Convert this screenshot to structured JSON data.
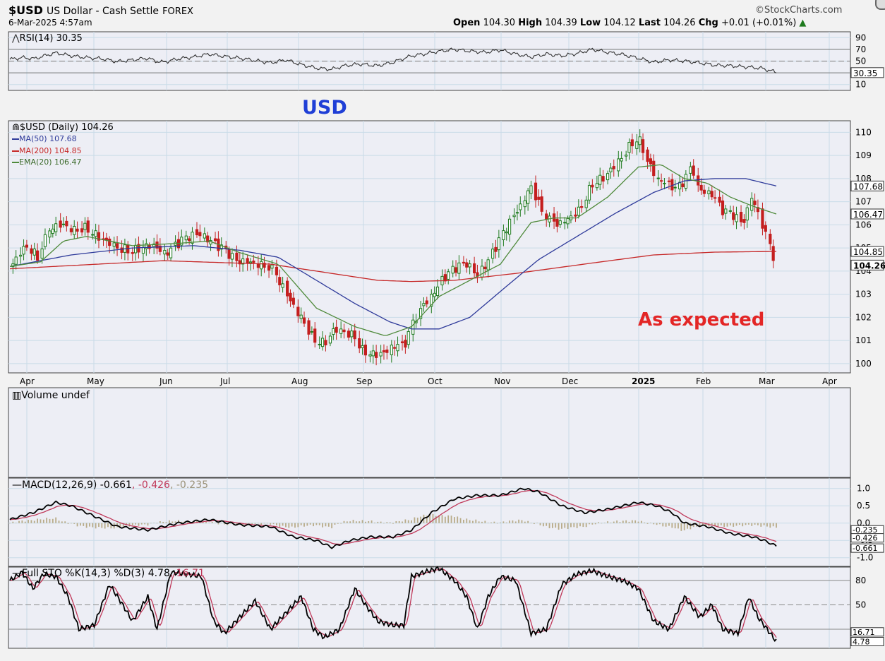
{
  "header": {
    "symbol": "$USD",
    "name": "US Dollar - Cash Settle",
    "exchange": "FOREX",
    "date": "6-Mar-2025 4:57am",
    "brand": "©StockCharts.com",
    "open_label": "Open",
    "open": "104.30",
    "high_label": "High",
    "high": "104.39",
    "low_label": "Low",
    "low": "104.12",
    "last_label": "Last",
    "last": "104.26",
    "chg_label": "Chg",
    "chg": "+0.01 (+0.01%)"
  },
  "annotations": {
    "usd": "USD",
    "expected": "As expected"
  },
  "colors": {
    "panel_bg": "#edeef5",
    "grid": "#c9dbe8",
    "up": "#1e7a1e",
    "down": "#c41e1e",
    "ma50": "#2e3a9a",
    "ma200": "#c62828",
    "ema20": "#4f8a3b",
    "macd_signal": "#c0395a",
    "hist": "#b8ab88",
    "usd_text": "#1f3fd6",
    "expected_text": "#e32626"
  },
  "chart_data": [
    {
      "type": "line",
      "title": "RSI(14) 30.35",
      "series": [
        {
          "name": "RSI(14)",
          "last": 30.35
        }
      ],
      "ylim": [
        0,
        100
      ],
      "yticks": [
        "90",
        "70",
        "50",
        "30.35",
        "10"
      ],
      "levels": [
        70,
        50,
        30
      ],
      "keypoints_rsi": [
        [
          0,
          53
        ],
        [
          8,
          56
        ],
        [
          16,
          54
        ],
        [
          24,
          60
        ],
        [
          30,
          64
        ],
        [
          40,
          59
        ],
        [
          50,
          56
        ],
        [
          60,
          54
        ],
        [
          70,
          49
        ],
        [
          80,
          52
        ],
        [
          90,
          55
        ],
        [
          95,
          50
        ],
        [
          100,
          48
        ],
        [
          110,
          54
        ],
        [
          120,
          57
        ],
        [
          130,
          62
        ],
        [
          140,
          58
        ],
        [
          150,
          55
        ],
        [
          160,
          51
        ],
        [
          170,
          47
        ],
        [
          180,
          52
        ],
        [
          190,
          44
        ],
        [
          200,
          38
        ],
        [
          210,
          36
        ],
        [
          218,
          42
        ],
        [
          228,
          45
        ],
        [
          240,
          42
        ],
        [
          250,
          48
        ],
        [
          262,
          59
        ],
        [
          270,
          62
        ],
        [
          278,
          66
        ],
        [
          290,
          70
        ],
        [
          300,
          67
        ],
        [
          310,
          65
        ],
        [
          320,
          69
        ],
        [
          330,
          62
        ],
        [
          340,
          57
        ],
        [
          350,
          62
        ],
        [
          360,
          59
        ],
        [
          370,
          63
        ],
        [
          380,
          70
        ],
        [
          390,
          65
        ],
        [
          400,
          61
        ],
        [
          410,
          55
        ],
        [
          420,
          48
        ],
        [
          430,
          52
        ],
        [
          440,
          50
        ],
        [
          450,
          47
        ],
        [
          460,
          43
        ],
        [
          470,
          42
        ],
        [
          480,
          40
        ],
        [
          490,
          38
        ],
        [
          500,
          31
        ]
      ]
    },
    {
      "type": "line",
      "title": "$USD (Daily) 104.26",
      "legend": [
        {
          "label": "MA(50) 107.68",
          "color": "#2e3a9a"
        },
        {
          "label": "MA(200) 104.85",
          "color": "#c62828"
        },
        {
          "label": "EMA(20) 106.47",
          "color": "#4f8a3b"
        }
      ],
      "x_ticks": [
        "Apr",
        "May",
        "Jun",
        "Jul",
        "Aug",
        "Sep",
        "Oct",
        "Nov",
        "Dec",
        "2025",
        "Feb",
        "Mar",
        "Apr"
      ],
      "y_ticks": [
        "110",
        "109",
        "108",
        "107",
        "106",
        "105",
        "104",
        "103",
        "102",
        "101",
        "100"
      ],
      "ylim": [
        99.6,
        110.5
      ],
      "axis_badges": [
        {
          "label": "107.68",
          "value": 107.68
        },
        {
          "label": "106.47",
          "value": 106.47
        },
        {
          "label": "104.85",
          "value": 104.85
        },
        {
          "label": "104.26",
          "value": 104.26,
          "bold": true
        }
      ],
      "close_keypoints": [
        [
          0,
          104.2
        ],
        [
          5,
          104.6
        ],
        [
          10,
          105.1
        ],
        [
          15,
          104.9
        ],
        [
          18,
          104.6
        ],
        [
          22,
          105.3
        ],
        [
          28,
          105.9
        ],
        [
          35,
          106.0
        ],
        [
          42,
          105.8
        ],
        [
          50,
          105.9
        ],
        [
          58,
          105.5
        ],
        [
          65,
          105.2
        ],
        [
          72,
          105.0
        ],
        [
          80,
          104.9
        ],
        [
          88,
          105.1
        ],
        [
          95,
          105.1
        ],
        [
          100,
          104.7
        ],
        [
          105,
          104.9
        ],
        [
          112,
          105.3
        ],
        [
          118,
          105.5
        ],
        [
          125,
          105.6
        ],
        [
          130,
          105.3
        ],
        [
          140,
          104.9
        ],
        [
          148,
          104.4
        ],
        [
          155,
          104.4
        ],
        [
          163,
          104.3
        ],
        [
          170,
          104.2
        ],
        [
          178,
          103.3
        ],
        [
          185,
          102.5
        ],
        [
          192,
          101.8
        ],
        [
          198,
          101.1
        ],
        [
          205,
          100.9
        ],
        [
          212,
          101.5
        ],
        [
          218,
          101.4
        ],
        [
          225,
          101.2
        ],
        [
          230,
          100.6
        ],
        [
          238,
          100.4
        ],
        [
          245,
          100.5
        ],
        [
          252,
          100.8
        ],
        [
          257,
          100.7
        ],
        [
          262,
          101.6
        ],
        [
          268,
          102.4
        ],
        [
          275,
          102.9
        ],
        [
          282,
          103.6
        ],
        [
          290,
          104.1
        ],
        [
          298,
          104.3
        ],
        [
          305,
          103.8
        ],
        [
          312,
          104.4
        ],
        [
          320,
          105.4
        ],
        [
          328,
          106.3
        ],
        [
          335,
          107.0
        ],
        [
          340,
          107.7
        ],
        [
          346,
          106.8
        ],
        [
          352,
          106.2
        ],
        [
          358,
          106.0
        ],
        [
          365,
          106.3
        ],
        [
          372,
          106.7
        ],
        [
          380,
          107.8
        ],
        [
          388,
          108.1
        ],
        [
          395,
          108.6
        ],
        [
          400,
          109.0
        ],
        [
          405,
          109.5
        ],
        [
          410,
          109.8
        ],
        [
          416,
          108.8
        ],
        [
          422,
          108.0
        ],
        [
          428,
          107.8
        ],
        [
          435,
          107.5
        ],
        [
          440,
          107.9
        ],
        [
          445,
          108.5
        ],
        [
          450,
          107.5
        ],
        [
          458,
          107.3
        ],
        [
          465,
          106.6
        ],
        [
          472,
          106.4
        ],
        [
          478,
          106.0
        ],
        [
          484,
          107.2
        ],
        [
          490,
          106.2
        ],
        [
          495,
          105.2
        ],
        [
          500,
          104.26
        ]
      ],
      "ma50_keypoints": [
        [
          0,
          104.2
        ],
        [
          40,
          104.7
        ],
        [
          80,
          105.0
        ],
        [
          120,
          105.1
        ],
        [
          150,
          104.9
        ],
        [
          175,
          104.6
        ],
        [
          200,
          103.6
        ],
        [
          225,
          102.6
        ],
        [
          248,
          101.8
        ],
        [
          262,
          101.5
        ],
        [
          280,
          101.5
        ],
        [
          300,
          102.0
        ],
        [
          325,
          103.4
        ],
        [
          345,
          104.5
        ],
        [
          370,
          105.5
        ],
        [
          395,
          106.5
        ],
        [
          420,
          107.4
        ],
        [
          440,
          107.9
        ],
        [
          460,
          108.0
        ],
        [
          480,
          108.0
        ],
        [
          500,
          107.68
        ]
      ],
      "ma200_keypoints": [
        [
          0,
          104.1
        ],
        [
          100,
          104.45
        ],
        [
          170,
          104.3
        ],
        [
          200,
          104.0
        ],
        [
          240,
          103.6
        ],
        [
          262,
          103.55
        ],
        [
          290,
          103.6
        ],
        [
          330,
          103.9
        ],
        [
          380,
          104.35
        ],
        [
          420,
          104.7
        ],
        [
          460,
          104.82
        ],
        [
          500,
          104.85
        ]
      ],
      "ema20_keypoints": [
        [
          0,
          104.2
        ],
        [
          20,
          104.4
        ],
        [
          35,
          105.3
        ],
        [
          50,
          105.5
        ],
        [
          80,
          105.1
        ],
        [
          110,
          105.2
        ],
        [
          130,
          105.3
        ],
        [
          150,
          104.8
        ],
        [
          175,
          104.3
        ],
        [
          200,
          102.4
        ],
        [
          225,
          101.6
        ],
        [
          245,
          101.2
        ],
        [
          262,
          101.6
        ],
        [
          280,
          102.9
        ],
        [
          300,
          103.6
        ],
        [
          320,
          104.3
        ],
        [
          340,
          106.1
        ],
        [
          355,
          106.3
        ],
        [
          370,
          106.3
        ],
        [
          390,
          107.2
        ],
        [
          410,
          108.5
        ],
        [
          425,
          108.6
        ],
        [
          440,
          108.0
        ],
        [
          455,
          107.8
        ],
        [
          470,
          107.2
        ],
        [
          485,
          106.8
        ],
        [
          500,
          106.47
        ]
      ],
      "annotation_labels": [
        "USD",
        "As expected"
      ]
    },
    {
      "type": "bar",
      "title": "Volume undef",
      "values": []
    },
    {
      "type": "line",
      "title": "MACD(12,26,9)",
      "title_values": [
        "-0.661",
        "-0.426",
        "-0.235"
      ],
      "series": [
        {
          "name": "MACD",
          "last": -0.661
        },
        {
          "name": "Signal",
          "last": -0.426
        },
        {
          "name": "Histogram",
          "last": -0.235
        }
      ],
      "ylim": [
        -1.25,
        1.3
      ],
      "y_ticks": [
        "1.0",
        "0.5",
        "0.0",
        "-0.5",
        "-1.0"
      ],
      "axis_badges": [
        "-0.235",
        "-0.426",
        "-0.661"
      ],
      "macd_keypoints": [
        [
          0,
          0.1
        ],
        [
          15,
          0.3
        ],
        [
          30,
          0.6
        ],
        [
          40,
          0.5
        ],
        [
          55,
          0.2
        ],
        [
          70,
          -0.1
        ],
        [
          90,
          -0.2
        ],
        [
          110,
          0.0
        ],
        [
          130,
          0.1
        ],
        [
          150,
          -0.05
        ],
        [
          170,
          -0.1
        ],
        [
          185,
          -0.4
        ],
        [
          200,
          -0.5
        ],
        [
          210,
          -0.7
        ],
        [
          222,
          -0.5
        ],
        [
          235,
          -0.4
        ],
        [
          250,
          -0.4
        ],
        [
          262,
          -0.2
        ],
        [
          275,
          0.3
        ],
        [
          290,
          0.7
        ],
        [
          305,
          0.8
        ],
        [
          320,
          0.8
        ],
        [
          335,
          1.0
        ],
        [
          345,
          0.9
        ],
        [
          360,
          0.5
        ],
        [
          375,
          0.3
        ],
        [
          390,
          0.4
        ],
        [
          410,
          0.6
        ],
        [
          422,
          0.5
        ],
        [
          432,
          0.3
        ],
        [
          440,
          0.0
        ],
        [
          455,
          -0.1
        ],
        [
          470,
          -0.3
        ],
        [
          485,
          -0.4
        ],
        [
          492,
          -0.5
        ],
        [
          500,
          -0.661
        ]
      ]
    },
    {
      "type": "line",
      "title": "Full STO %K(14,3) %D(3)",
      "title_values": [
        "4.78",
        "16.71"
      ],
      "series": [
        {
          "name": "%K",
          "last": 4.78
        },
        {
          "name": "%D",
          "last": 16.71
        }
      ],
      "ylim": [
        0,
        100
      ],
      "y_ticks": [
        "80",
        "50",
        "16.71",
        "4.78"
      ],
      "levels": [
        80,
        50,
        20
      ],
      "stoch_keypoints": [
        [
          0,
          80
        ],
        [
          8,
          90
        ],
        [
          15,
          70
        ],
        [
          22,
          88
        ],
        [
          30,
          85
        ],
        [
          38,
          60
        ],
        [
          45,
          20
        ],
        [
          55,
          25
        ],
        [
          65,
          75
        ],
        [
          72,
          55
        ],
        [
          80,
          30
        ],
        [
          90,
          60
        ],
        [
          96,
          20
        ],
        [
          105,
          90
        ],
        [
          115,
          88
        ],
        [
          125,
          85
        ],
        [
          133,
          30
        ],
        [
          140,
          15
        ],
        [
          150,
          35
        ],
        [
          160,
          55
        ],
        [
          170,
          20
        ],
        [
          180,
          40
        ],
        [
          190,
          60
        ],
        [
          198,
          20
        ],
        [
          205,
          10
        ],
        [
          215,
          20
        ],
        [
          225,
          70
        ],
        [
          232,
          50
        ],
        [
          240,
          30
        ],
        [
          250,
          25
        ],
        [
          257,
          25
        ],
        [
          262,
          85
        ],
        [
          270,
          90
        ],
        [
          280,
          95
        ],
        [
          290,
          80
        ],
        [
          298,
          60
        ],
        [
          305,
          20
        ],
        [
          312,
          60
        ],
        [
          320,
          85
        ],
        [
          330,
          80
        ],
        [
          340,
          15
        ],
        [
          350,
          20
        ],
        [
          360,
          75
        ],
        [
          370,
          88
        ],
        [
          380,
          92
        ],
        [
          390,
          85
        ],
        [
          400,
          80
        ],
        [
          410,
          70
        ],
        [
          420,
          30
        ],
        [
          430,
          20
        ],
        [
          440,
          60
        ],
        [
          450,
          35
        ],
        [
          458,
          50
        ],
        [
          465,
          20
        ],
        [
          475,
          15
        ],
        [
          482,
          60
        ],
        [
          488,
          35
        ],
        [
          494,
          20
        ],
        [
          500,
          5
        ]
      ]
    }
  ]
}
